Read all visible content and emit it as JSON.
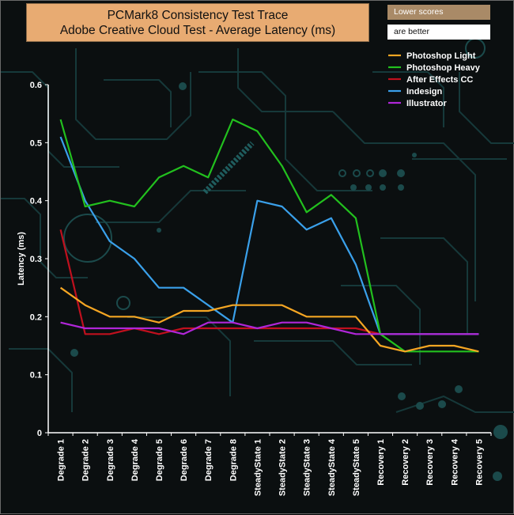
{
  "title_line1": "PCMark8 Consistency Test Trace",
  "title_line2": "Adobe Creative Cloud Test -  Average Latency (ms)",
  "note_line1": "Lower scores",
  "note_line2": "are better",
  "chart_data": {
    "type": "line",
    "title": "PCMark8 Consistency Test Trace Adobe Creative Cloud Test -  Average Latency (ms)",
    "xlabel": "",
    "ylabel": "Latency (ms)",
    "ylim": [
      0,
      0.6
    ],
    "yticks": [
      "0",
      "0.1",
      "0.2",
      "0.3",
      "0.4",
      "0.5",
      "0.6"
    ],
    "grid": false,
    "legend_position": "top-right",
    "categories": [
      "Degrade 1",
      "Degrade 2",
      "Degrade 3",
      "Degrade 4",
      "Degrade 5",
      "Degrade 6",
      "Degrade 7",
      "Degrade 8",
      "SteadyState 1",
      "SteadyState 2",
      "SteadyState 3",
      "SteadyState 4",
      "SteadyState 5",
      "Recovery 1",
      "Recovery 2",
      "Recovery 3",
      "Recovery 4",
      "Recovery 5"
    ],
    "series": [
      {
        "name": "Photoshop Light",
        "color": "#f5a623",
        "values": [
          0.25,
          0.22,
          0.2,
          0.2,
          0.19,
          0.21,
          0.21,
          0.22,
          0.22,
          0.22,
          0.2,
          0.2,
          0.2,
          0.15,
          0.14,
          0.15,
          0.15,
          0.14
        ]
      },
      {
        "name": "Photoshop Heavy",
        "color": "#22c01e",
        "values": [
          0.54,
          0.39,
          0.4,
          0.39,
          0.44,
          0.46,
          0.44,
          0.54,
          0.52,
          0.46,
          0.38,
          0.41,
          0.37,
          0.17,
          0.14,
          0.14,
          0.14,
          0.14
        ]
      },
      {
        "name": "After Effects CC",
        "color": "#c0101e",
        "values": [
          0.35,
          0.17,
          0.17,
          0.18,
          0.17,
          0.18,
          0.18,
          0.18,
          0.18,
          0.18,
          0.18,
          0.18,
          0.18,
          0.17,
          0.17,
          0.17,
          0.17,
          0.17
        ]
      },
      {
        "name": "Indesign",
        "color": "#3aa0ea",
        "values": [
          0.51,
          0.4,
          0.33,
          0.3,
          0.25,
          0.25,
          0.22,
          0.19,
          0.4,
          0.39,
          0.35,
          0.37,
          0.29,
          0.17,
          0.17,
          0.17,
          0.17,
          0.17
        ]
      },
      {
        "name": "Illustrator",
        "color": "#b026d8",
        "values": [
          0.19,
          0.18,
          0.18,
          0.18,
          0.18,
          0.17,
          0.19,
          0.19,
          0.18,
          0.19,
          0.19,
          0.18,
          0.17,
          0.17,
          0.17,
          0.17,
          0.17,
          0.17
        ]
      }
    ]
  }
}
